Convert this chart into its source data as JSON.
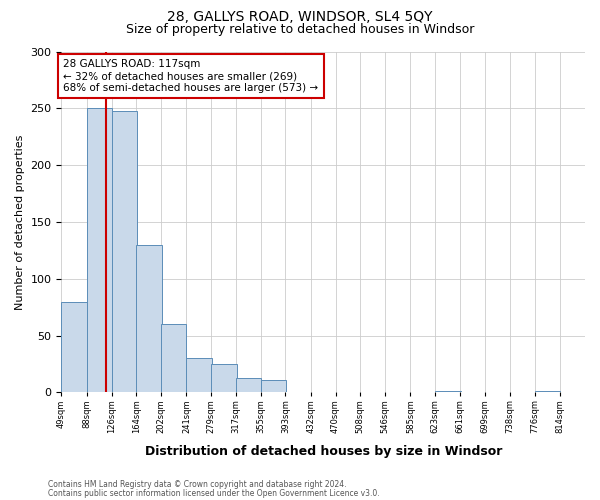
{
  "title": "28, GALLYS ROAD, WINDSOR, SL4 5QY",
  "subtitle": "Size of property relative to detached houses in Windsor",
  "xlabel": "Distribution of detached houses by size in Windsor",
  "ylabel": "Number of detached properties",
  "bin_edges": [
    49,
    88,
    126,
    164,
    202,
    241,
    279,
    317,
    355,
    393,
    432,
    470,
    508,
    546,
    585,
    623,
    661,
    699,
    738,
    776,
    814
  ],
  "bar_heights": [
    80,
    250,
    248,
    130,
    60,
    30,
    25,
    13,
    11,
    0,
    0,
    0,
    0,
    0,
    0,
    1,
    0,
    0,
    0,
    1
  ],
  "bar_color": "#c9d9ea",
  "bar_edge_color": "#5b8db8",
  "property_size": 117,
  "red_line_color": "#cc0000",
  "annotation_title": "28 GALLYS ROAD: 117sqm",
  "annotation_line1": "← 32% of detached houses are smaller (269)",
  "annotation_line2": "68% of semi-detached houses are larger (573) →",
  "annotation_box_color": "#cc0000",
  "annotation_box_fill": "#ffffff",
  "ylim": [
    0,
    300
  ],
  "yticks": [
    0,
    50,
    100,
    150,
    200,
    250,
    300
  ],
  "footer1": "Contains HM Land Registry data © Crown copyright and database right 2024.",
  "footer2": "Contains public sector information licensed under the Open Government Licence v3.0.",
  "background_color": "#ffffff",
  "grid_color": "#cccccc"
}
